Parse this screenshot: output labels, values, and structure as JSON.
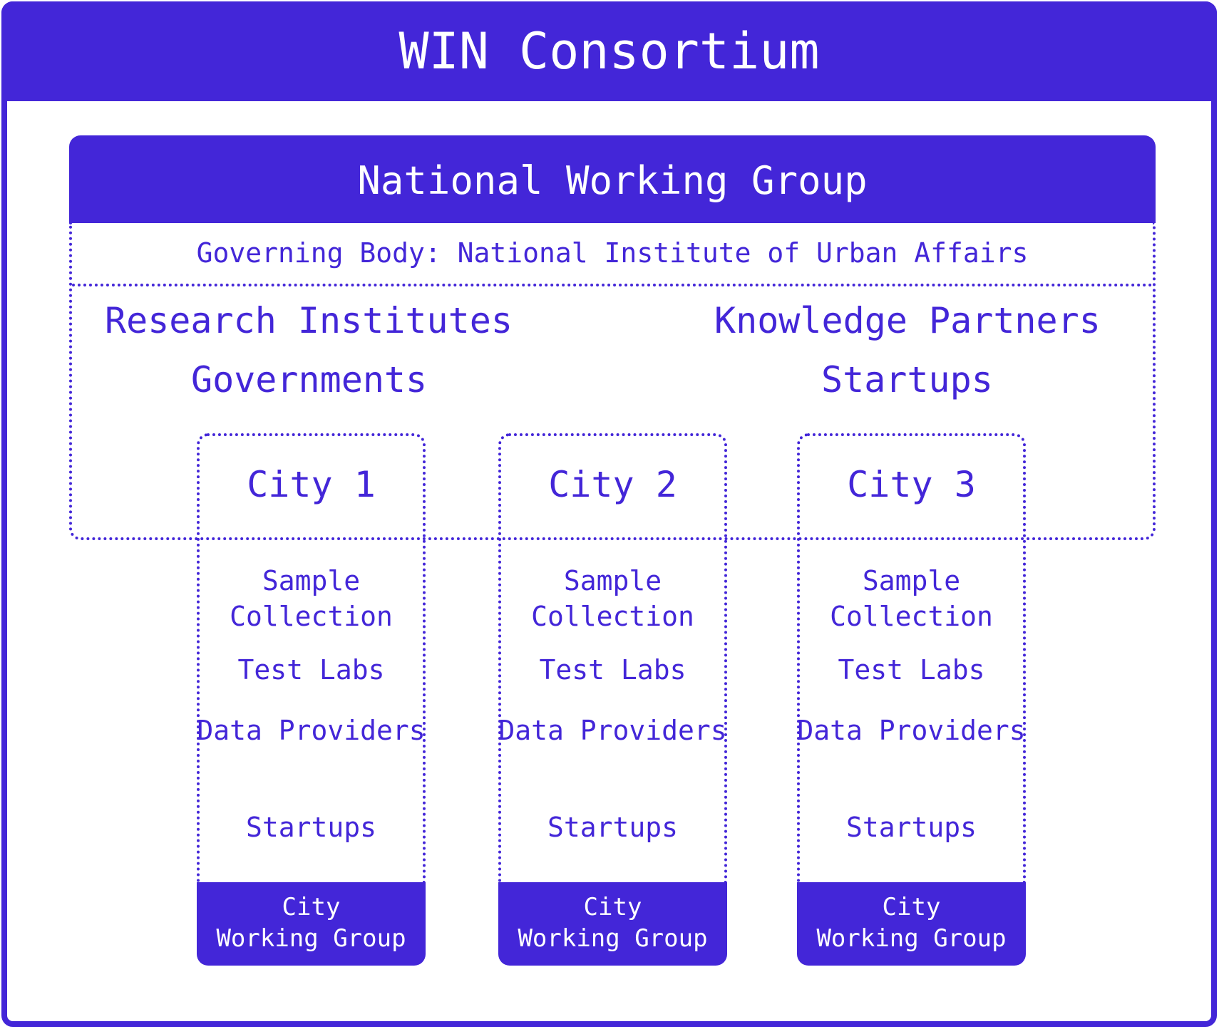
{
  "consortium": {
    "title": "WIN Consortium"
  },
  "national_working_group": {
    "title": "National Working Group",
    "governing_body": "Governing Body: National Institute of Urban Affairs",
    "members": [
      "Research Institutes",
      "Knowledge Partners",
      "Governments",
      "Startups"
    ]
  },
  "cities": [
    {
      "name": "City 1",
      "items": [
        "Sample Collection",
        "Test Labs",
        "Data Providers",
        "Startups"
      ],
      "footer": [
        "City",
        "Working Group"
      ]
    },
    {
      "name": "City 2",
      "items": [
        "Sample Collection",
        "Test Labs",
        "Data Providers",
        "Startups"
      ],
      "footer": [
        "City",
        "Working Group"
      ]
    },
    {
      "name": "City 3",
      "items": [
        "Sample Collection",
        "Test Labs",
        "Data Providers",
        "Startups"
      ],
      "footer": [
        "City",
        "Working Group"
      ]
    }
  ],
  "colors": {
    "primary": "#4326D8",
    "background": "#FFFFFF"
  }
}
